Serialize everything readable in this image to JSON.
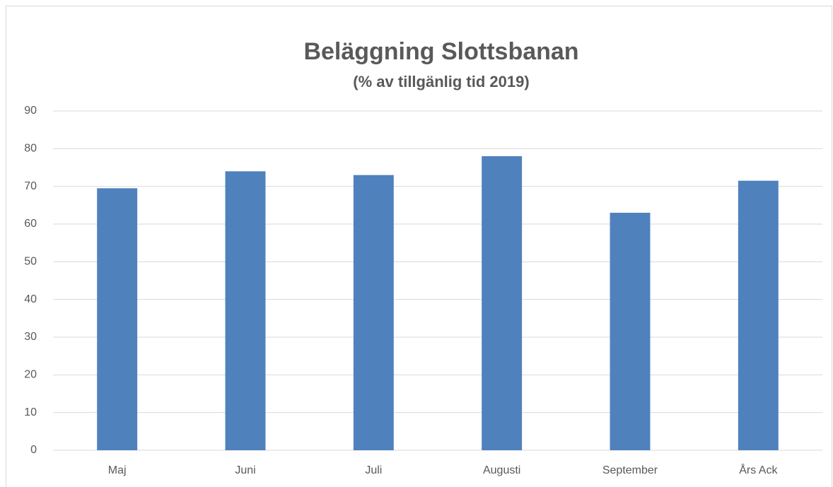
{
  "chart_data": {
    "type": "bar",
    "title": "Beläggning Slottsbanan",
    "subtitle": "(% av tillgänlig tid 2019)",
    "categories": [
      "Maj",
      "Juni",
      "Juli",
      "Augusti",
      "September",
      "Års Ack"
    ],
    "values": [
      69.5,
      74,
      73,
      78,
      63,
      71.5
    ],
    "color": "#4f81bd",
    "ylim": [
      0,
      90
    ],
    "yticks": [
      0,
      10,
      20,
      30,
      40,
      50,
      60,
      70,
      80,
      90
    ],
    "grid": true
  }
}
